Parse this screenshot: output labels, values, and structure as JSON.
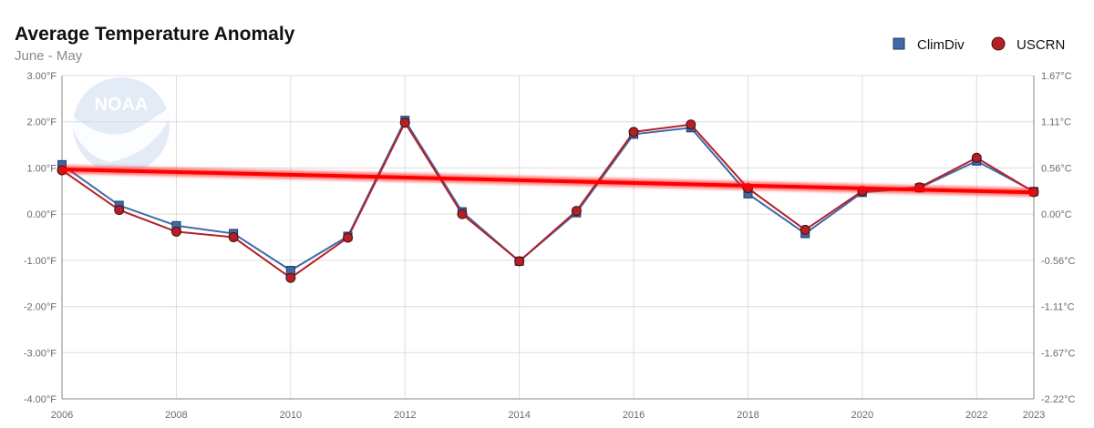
{
  "chart_data": {
    "type": "line",
    "title": "Average Temperature Anomaly",
    "subtitle": "June - May",
    "x": [
      2006,
      2007,
      2008,
      2009,
      2010,
      2011,
      2012,
      2013,
      2014,
      2015,
      2016,
      2017,
      2018,
      2019,
      2020,
      2021,
      2022,
      2023
    ],
    "x_tick_labels": [
      "2006",
      "2008",
      "2010",
      "2012",
      "2014",
      "2016",
      "2018",
      "2020",
      "2022",
      "2023"
    ],
    "xlim": [
      2006,
      2023
    ],
    "ylim": [
      -4,
      3
    ],
    "y_tick_labels_left": [
      "3.00°F",
      "2.00°F",
      "1.00°F",
      "0.00°F",
      "-1.00°F",
      "-2.00°F",
      "-3.00°F",
      "-4.00°F"
    ],
    "y_tick_labels_right": [
      "1.67°C",
      "1.11°C",
      "0.56°C",
      "0.00°C",
      "-0.56°C",
      "-1.11°C",
      "-1.67°C",
      "-2.22°C"
    ],
    "grid": true,
    "legend_position": "top-right",
    "series": [
      {
        "name": "ClimDiv",
        "marker": "square",
        "color": "#3f69a8",
        "values": [
          1.07,
          0.19,
          -0.25,
          -0.42,
          -1.22,
          -0.48,
          2.03,
          0.05,
          -1.02,
          0.03,
          1.73,
          1.87,
          0.44,
          -0.42,
          0.47,
          0.57,
          1.15,
          0.49
        ]
      },
      {
        "name": "USCRN",
        "marker": "circle",
        "color": "#b32127",
        "values": [
          0.95,
          0.09,
          -0.38,
          -0.5,
          -1.38,
          -0.51,
          1.98,
          0.0,
          -1.02,
          0.07,
          1.78,
          1.94,
          0.56,
          -0.34,
          0.5,
          0.58,
          1.22,
          0.48
        ]
      }
    ],
    "trend_line": {
      "color": "#ff0000",
      "x": [
        2006,
        2023
      ],
      "y": [
        0.97,
        0.47
      ]
    }
  },
  "logo": {
    "text": "NOAA",
    "color": "#dde8f4"
  }
}
